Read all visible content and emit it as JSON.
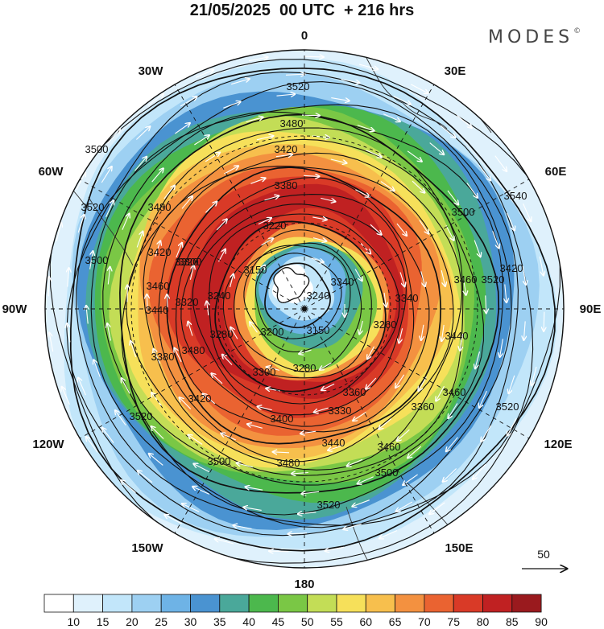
{
  "header": {
    "title": "21/05/2025  00 UTC  + 216 hrs",
    "brand": "MODES",
    "brand_mark": "©"
  },
  "map": {
    "projection": "south-polar-stereographic",
    "longitude_labels": [
      "0",
      "30E",
      "60E",
      "90E",
      "120E",
      "150E",
      "180",
      "150W",
      "120W",
      "90W",
      "60W",
      "30W"
    ],
    "contour_labels": [
      "3520",
      "3480",
      "3420",
      "3380",
      "3500",
      "3480",
      "3420",
      "3320",
      "3540",
      "3500",
      "3460",
      "3420",
      "3520",
      "3220",
      "3150",
      "3240",
      "3300",
      "3320",
      "3240",
      "3150",
      "3200",
      "3280",
      "3340",
      "3260",
      "3300",
      "3330",
      "3360",
      "3400",
      "3420",
      "3380",
      "3440",
      "3460",
      "3500",
      "3480",
      "3520",
      "3500",
      "3440",
      "3460",
      "3520",
      "3500",
      "3520",
      "3520",
      "3460",
      "3480",
      "3340",
      "3280",
      "3440",
      "3360"
    ],
    "wind_vector_reference": "50",
    "colors": {
      "ocean": "#ffffff",
      "grid": "#111111"
    }
  },
  "colorbar": {
    "ticks": [
      "10",
      "15",
      "20",
      "25",
      "30",
      "35",
      "40",
      "45",
      "50",
      "55",
      "60",
      "65",
      "70",
      "75",
      "80",
      "85",
      "90"
    ],
    "colors": [
      "#ffffff",
      "#dff1fc",
      "#c2e6fa",
      "#9dd0f2",
      "#6eb3e6",
      "#4a93d1",
      "#4aa89a",
      "#4cb84d",
      "#7ac745",
      "#c3dd56",
      "#f6e05a",
      "#f7bf4d",
      "#f39140",
      "#ea6331",
      "#d93a27",
      "#c02122",
      "#9a1a1e"
    ]
  }
}
